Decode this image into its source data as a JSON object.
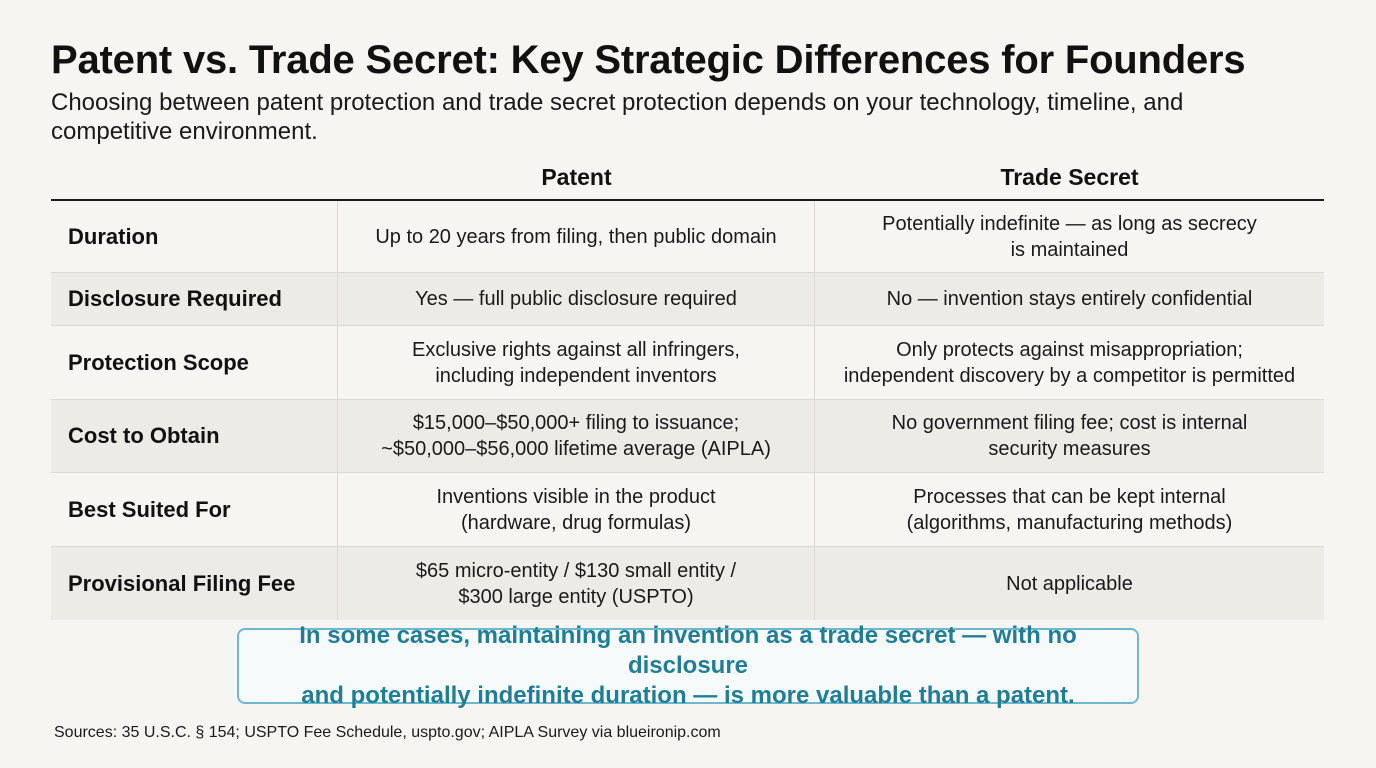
{
  "header": {
    "title": "Patent vs. Trade Secret: Key Strategic Differences for Founders",
    "subtitle": "Choosing between patent protection and trade secret protection depends on your technology, timeline, and competitive environment."
  },
  "table": {
    "columns": [
      "",
      "Patent",
      "Trade Secret"
    ],
    "rows": [
      {
        "label": "Duration",
        "patent": "Up to 20 years from filing, then public domain",
        "trade_secret": "Potentially indefinite — as long as secrecy\nis maintained"
      },
      {
        "label": "Disclosure Required",
        "patent": "Yes — full public disclosure required",
        "trade_secret": "No — invention stays entirely confidential"
      },
      {
        "label": "Protection Scope",
        "patent": "Exclusive rights against all infringers,\nincluding independent inventors",
        "trade_secret": "Only protects against misappropriation;\nindependent discovery by a competitor is permitted"
      },
      {
        "label": "Cost to Obtain",
        "patent": "$15,000–$50,000+ filing to issuance;\n~$50,000–$56,000 lifetime average (AIPLA)",
        "trade_secret": "No government filing fee; cost is internal\nsecurity measures"
      },
      {
        "label": "Best Suited For",
        "patent": "Inventions visible in the product\n(hardware, drug formulas)",
        "trade_secret": "Processes that can be kept internal\n(algorithms, manufacturing methods)"
      },
      {
        "label": "Provisional Filing Fee",
        "patent": "$65 micro-entity / $130 small entity /\n$300 large entity (USPTO)",
        "trade_secret": "Not applicable"
      }
    ]
  },
  "callout": {
    "text": "In some cases, maintaining an invention as a trade secret — with no disclosure\nand potentially indefinite duration — is more valuable than a patent."
  },
  "footer": {
    "sources": "Sources: 35 U.S.C. § 154; USPTO Fee Schedule, uspto.gov; AIPLA Survey via blueironip.com"
  },
  "colors": {
    "background": "#f6f5f1",
    "row_alt": "#ecebe6",
    "callout_border": "#6fb7cd",
    "callout_text": "#1f7e95"
  }
}
